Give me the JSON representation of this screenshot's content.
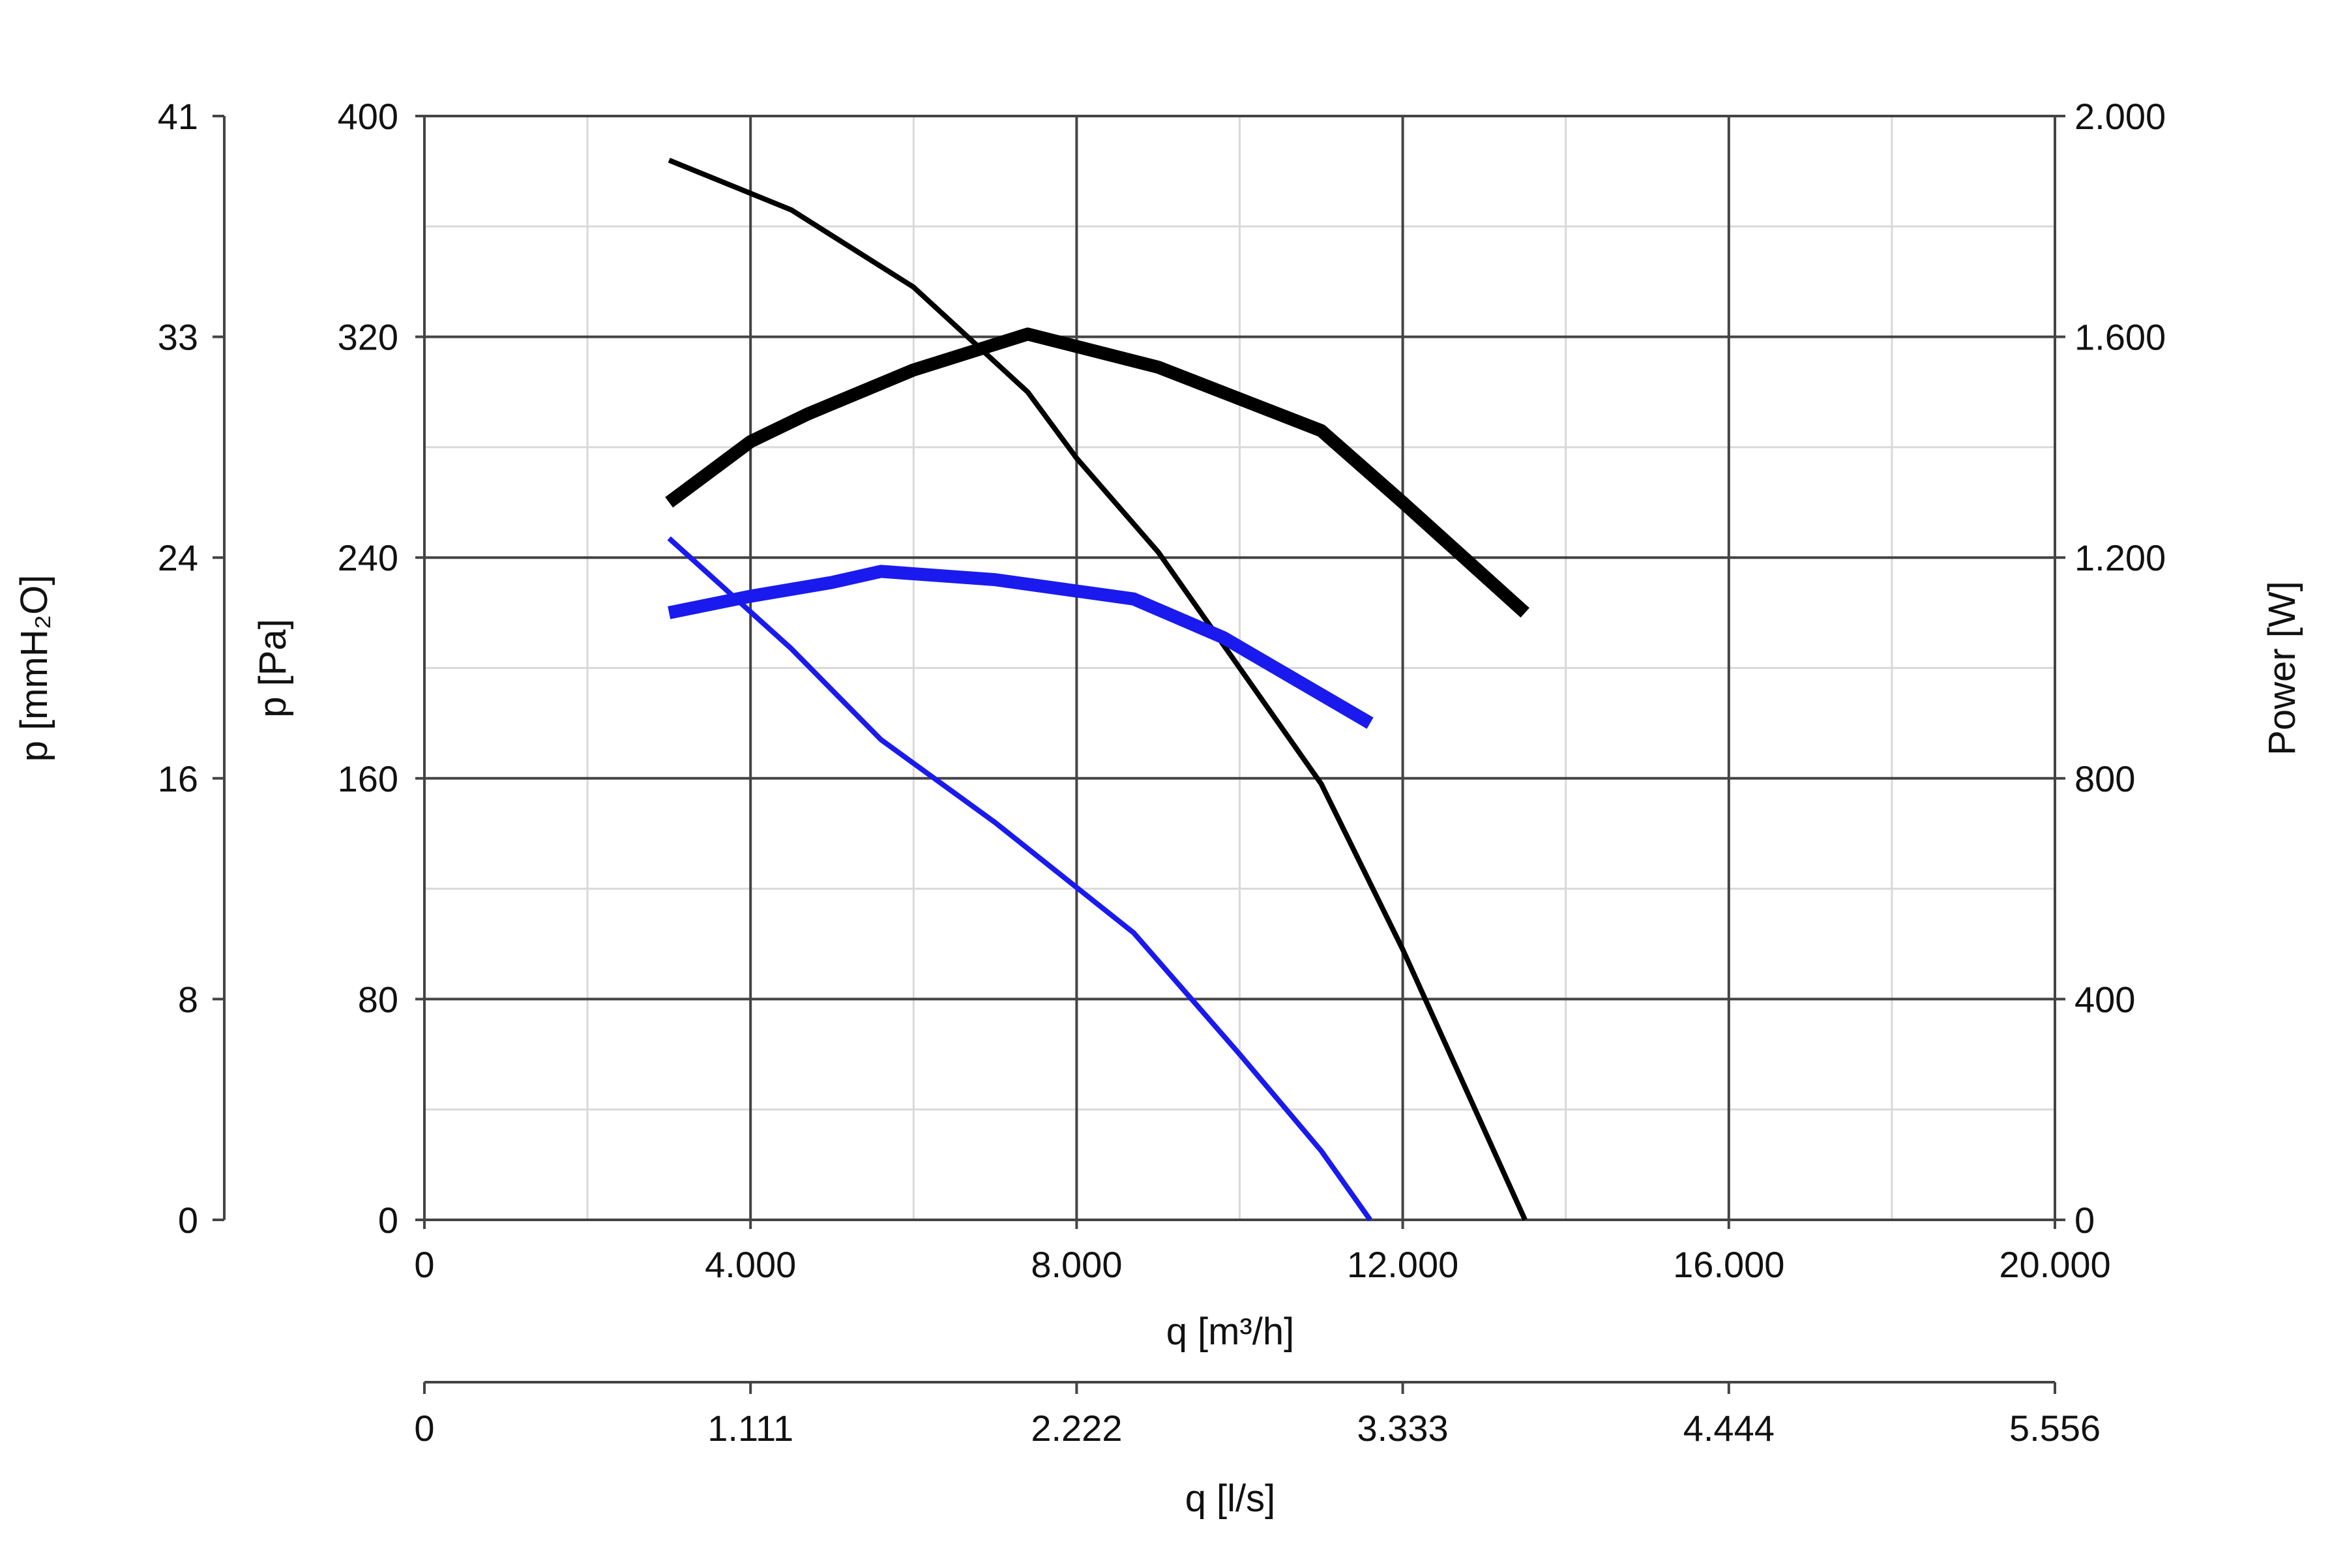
{
  "chart_data": {
    "type": "line",
    "x_axis": {
      "label": "q [m³/h]",
      "range": [
        0,
        20000
      ],
      "ticks": [
        0,
        4000,
        8000,
        12000,
        16000,
        20000
      ],
      "tick_labels": [
        "0",
        "4.000",
        "8.000",
        "12.000",
        "16.000",
        "20.000"
      ]
    },
    "x2_axis": {
      "label": "q [l/s]",
      "range": [
        0,
        5.556
      ],
      "tick_labels": [
        "0",
        "1.111",
        "2.222",
        "3.333",
        "4.444",
        "5.556"
      ]
    },
    "y_axis": {
      "label": "p [Pa]",
      "range": [
        0,
        400
      ],
      "ticks": [
        0,
        80,
        160,
        240,
        320,
        400
      ],
      "tick_labels": [
        "0",
        "80",
        "160",
        "240",
        "320",
        "400"
      ]
    },
    "y2_axis": {
      "label": "p [mmH₂O]",
      "range": [
        0,
        41
      ],
      "tick_labels": [
        "0",
        "8",
        "16",
        "24",
        "33",
        "41"
      ]
    },
    "y3_axis": {
      "label": "Power [W]",
      "range": [
        0,
        2000
      ],
      "ticks": [
        0,
        400,
        800,
        1200,
        1600,
        2000
      ],
      "tick_labels": [
        "0",
        "400",
        "800",
        "1.200",
        "1.600",
        "2.000"
      ]
    },
    "grid": {
      "major": true,
      "minor": true
    },
    "series": [
      {
        "axis": "pressure",
        "color": "#000000",
        "weight": "thin",
        "x": [
          3000,
          4500,
          6000,
          7400,
          8000,
          9000,
          10000,
          11000,
          12000,
          13500
        ],
        "values": [
          384,
          366,
          338,
          300,
          276,
          242,
          200,
          158,
          98,
          0
        ]
      },
      {
        "axis": "power",
        "color": "#000000",
        "weight": "thick",
        "x": [
          3000,
          4000,
          4700,
          6000,
          7400,
          9000,
          11000,
          12000,
          13500
        ],
        "values": [
          1300,
          1410,
          1460,
          1540,
          1605,
          1545,
          1430,
          1300,
          1100
        ]
      },
      {
        "axis": "pressure",
        "color": "#1a1aee",
        "weight": "thin",
        "x": [
          3000,
          4500,
          5600,
          7000,
          8700,
          10000,
          11000,
          11600
        ],
        "values": [
          247,
          207,
          174,
          144,
          104,
          60,
          25,
          0
        ]
      },
      {
        "axis": "power",
        "color": "#1a1aee",
        "weight": "thick",
        "x": [
          3000,
          4000,
          5000,
          5600,
          7000,
          8700,
          9800,
          11600
        ],
        "values": [
          1100,
          1130,
          1155,
          1175,
          1160,
          1125,
          1055,
          900
        ]
      }
    ]
  }
}
